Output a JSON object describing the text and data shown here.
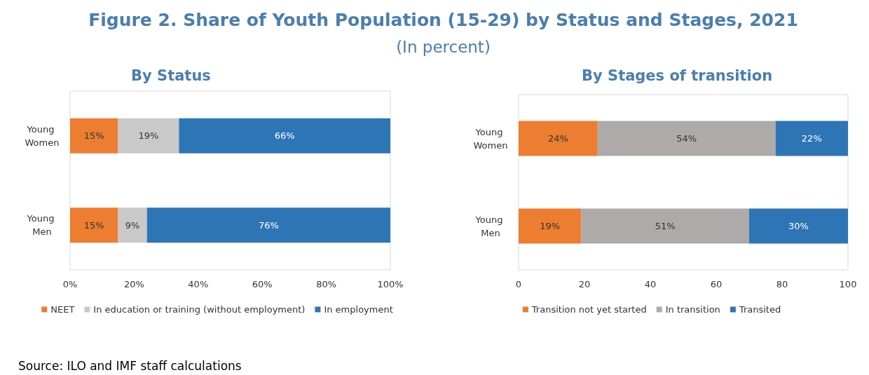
{
  "chart_data": [
    {
      "type": "other",
      "title": "Figure 2. Share of Youth Population (15-29) by Status and Stages, 2021",
      "subtitle": "(In percent)",
      "annotations": [
        "Source: ILO and IMF staff calculations"
      ]
    },
    {
      "type": "bar",
      "title": "By Status",
      "orientation": "horizontal",
      "stacked": true,
      "categories": [
        "Young Women",
        "Young Men"
      ],
      "series": [
        {
          "name": "NEET",
          "color": "#ed7d31",
          "values": [
            15,
            15
          ],
          "value_labels": [
            "15%",
            "15%"
          ]
        },
        {
          "name": "In education or training (without employment)",
          "color": "#c9c9c9",
          "values": [
            19,
            9
          ],
          "value_labels": [
            "19%",
            "9%"
          ]
        },
        {
          "name": "In employment",
          "color": "#2e75b6",
          "values": [
            66,
            76
          ],
          "value_labels": [
            "66%",
            "76%"
          ]
        }
      ],
      "xlim": [
        0,
        100
      ],
      "xticks": [
        {
          "value": 0,
          "label": "0%"
        },
        {
          "value": 20,
          "label": "20%"
        },
        {
          "value": 40,
          "label": "40%"
        },
        {
          "value": 60,
          "label": "60%"
        },
        {
          "value": 80,
          "label": "80%"
        },
        {
          "value": 100,
          "label": "100%"
        }
      ],
      "grid": false,
      "legend": "bottom"
    },
    {
      "type": "bar",
      "title": "By Stages of transition",
      "orientation": "horizontal",
      "stacked": true,
      "categories": [
        "Young Women",
        "Young Men"
      ],
      "series": [
        {
          "name": "Transition not yet started",
          "color": "#ed7d31",
          "values": [
            24,
            19
          ],
          "value_labels": [
            "24%",
            "19%"
          ]
        },
        {
          "name": "In transition",
          "color": "#aeaaaa",
          "values": [
            54,
            51
          ],
          "value_labels": [
            "54%",
            "51%"
          ]
        },
        {
          "name": "Transited",
          "color": "#2e75b6",
          "values": [
            22,
            30
          ],
          "value_labels": [
            "22%",
            "30%"
          ]
        }
      ],
      "xlim": [
        0,
        100
      ],
      "xticks": [
        0,
        20,
        40,
        60,
        80,
        100
      ],
      "grid": false,
      "legend": "bottom"
    }
  ]
}
